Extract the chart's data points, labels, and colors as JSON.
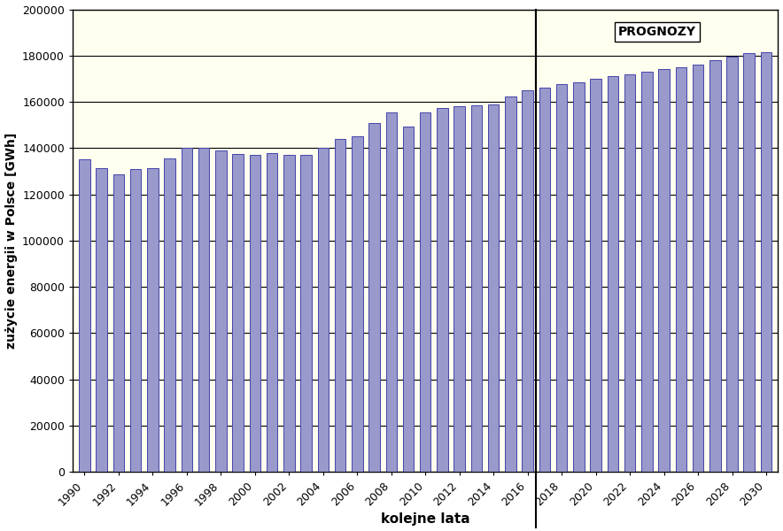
{
  "years": [
    1990,
    1991,
    1992,
    1993,
    1994,
    1995,
    1996,
    1997,
    1998,
    1999,
    2000,
    2001,
    2002,
    2003,
    2004,
    2005,
    2006,
    2007,
    2008,
    2009,
    2010,
    2011,
    2012,
    2013,
    2014,
    2015,
    2016,
    2017,
    2018,
    2019,
    2020,
    2021,
    2022,
    2023,
    2024,
    2025,
    2026,
    2027,
    2028,
    2029,
    2030
  ],
  "values": [
    135000,
    131500,
    128500,
    131000,
    131500,
    135500,
    140000,
    140000,
    139000,
    137500,
    137000,
    138000,
    137000,
    137000,
    140000,
    144000,
    145000,
    151000,
    155500,
    149500,
    155500,
    157500,
    158000,
    158500,
    159000,
    162500,
    165000,
    166000,
    167500,
    168500,
    170000,
    171000,
    172000,
    173000,
    174000,
    175000,
    176000,
    178000,
    179500,
    181000,
    181500
  ],
  "split_year": 2017,
  "bar_color": "#9999cc",
  "bar_edge_color": "#4444aa",
  "background_color": "#fffff0",
  "ylabel": "zużycie energii w Polsce [GWh]",
  "xlabel": "kolejne lata",
  "ylim": [
    0,
    200000
  ],
  "yticks": [
    0,
    20000,
    40000,
    60000,
    80000,
    100000,
    120000,
    140000,
    160000,
    180000,
    200000
  ],
  "prognozy_label": "PROGNOZY",
  "prognozy_box_color": "#ffffff",
  "figsize": [
    8.84,
    6.0
  ],
  "dpi": 100
}
